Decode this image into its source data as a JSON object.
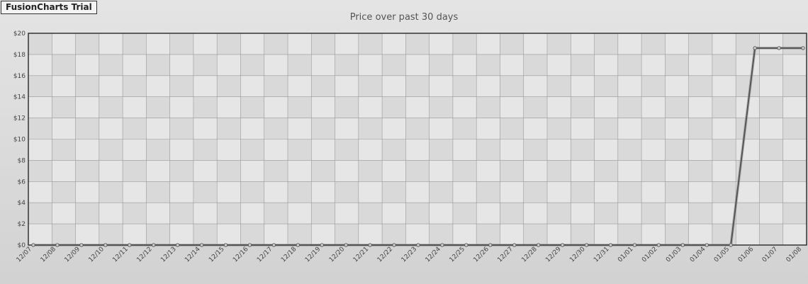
{
  "badge": "FusionCharts Trial",
  "chart_data": {
    "type": "line",
    "title": "Price over past 30 days",
    "xlabel": "",
    "ylabel": "",
    "ylim": [
      0,
      20
    ],
    "y_ticks": [
      "$0",
      "$2",
      "$4",
      "$6",
      "$8",
      "$10",
      "$12",
      "$14",
      "$16",
      "$18",
      "$20"
    ],
    "categories": [
      "12/07",
      "12/08",
      "12/09",
      "12/10",
      "12/11",
      "12/12",
      "12/13",
      "12/14",
      "12/15",
      "12/16",
      "12/17",
      "12/18",
      "12/19",
      "12/20",
      "12/21",
      "12/22",
      "12/23",
      "12/24",
      "12/25",
      "12/26",
      "12/27",
      "12/28",
      "12/29",
      "12/30",
      "12/31",
      "01/01",
      "01/02",
      "01/03",
      "01/04",
      "01/05",
      "01/06",
      "01/07",
      "01/08"
    ],
    "values": [
      0,
      0,
      0,
      0,
      0,
      0,
      0,
      0,
      0,
      0,
      0,
      0,
      0,
      0,
      0,
      0,
      0,
      0,
      0,
      0,
      0,
      0,
      0,
      0,
      0,
      0,
      0,
      0,
      0,
      0,
      18.6,
      18.6,
      18.6
    ],
    "grid": true,
    "colors": {
      "line": "#555555",
      "band_dark": "#d9d9d9",
      "band_light": "#e6e6e6",
      "grid": "#999999"
    }
  }
}
